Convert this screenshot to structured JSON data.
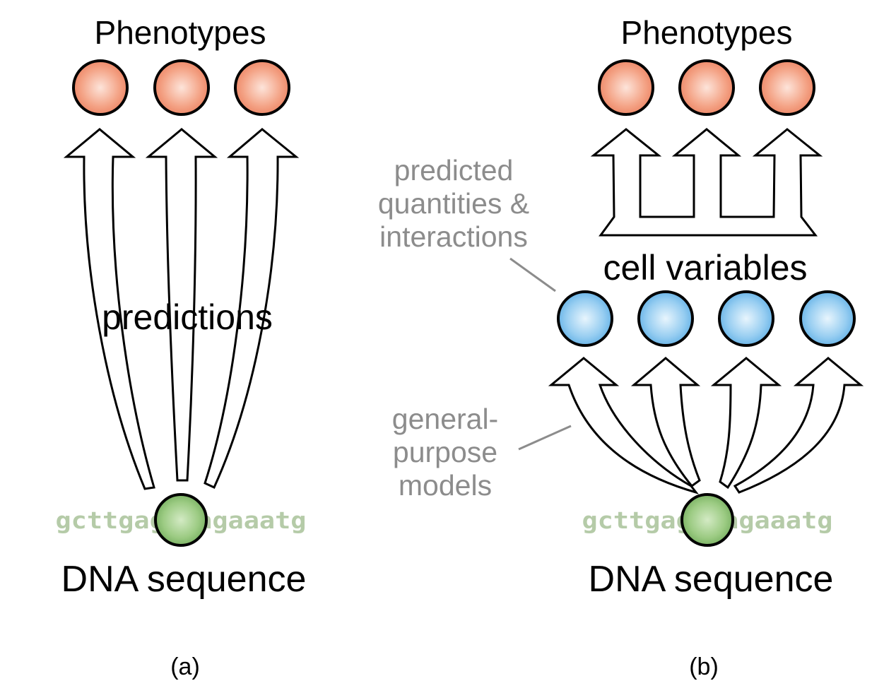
{
  "panel_a": {
    "title": "Phenotypes",
    "arrow_label": "predictions",
    "dna_fragment": "gcttgagctagaaatg",
    "bottom_label": "DNA sequence",
    "caption": "(a)"
  },
  "panel_b": {
    "title": "Phenotypes",
    "middle_label": "cell variables",
    "annotation_predicted": [
      "predicted",
      "quantities &",
      "interactions"
    ],
    "annotation_models": [
      "general-",
      "purpose",
      "models"
    ],
    "dna_fragment": "gcttgagctagaaatg",
    "bottom_label": "DNA sequence",
    "caption": "(b)"
  },
  "colors": {
    "phenotype_node": "#f08c6e",
    "cell_variable_node": "#6cb8ea",
    "dna_node": "#7fb069",
    "dna_text": "#9bb58a",
    "annotation_text": "#8c8c8c",
    "stroke": "#000000"
  }
}
